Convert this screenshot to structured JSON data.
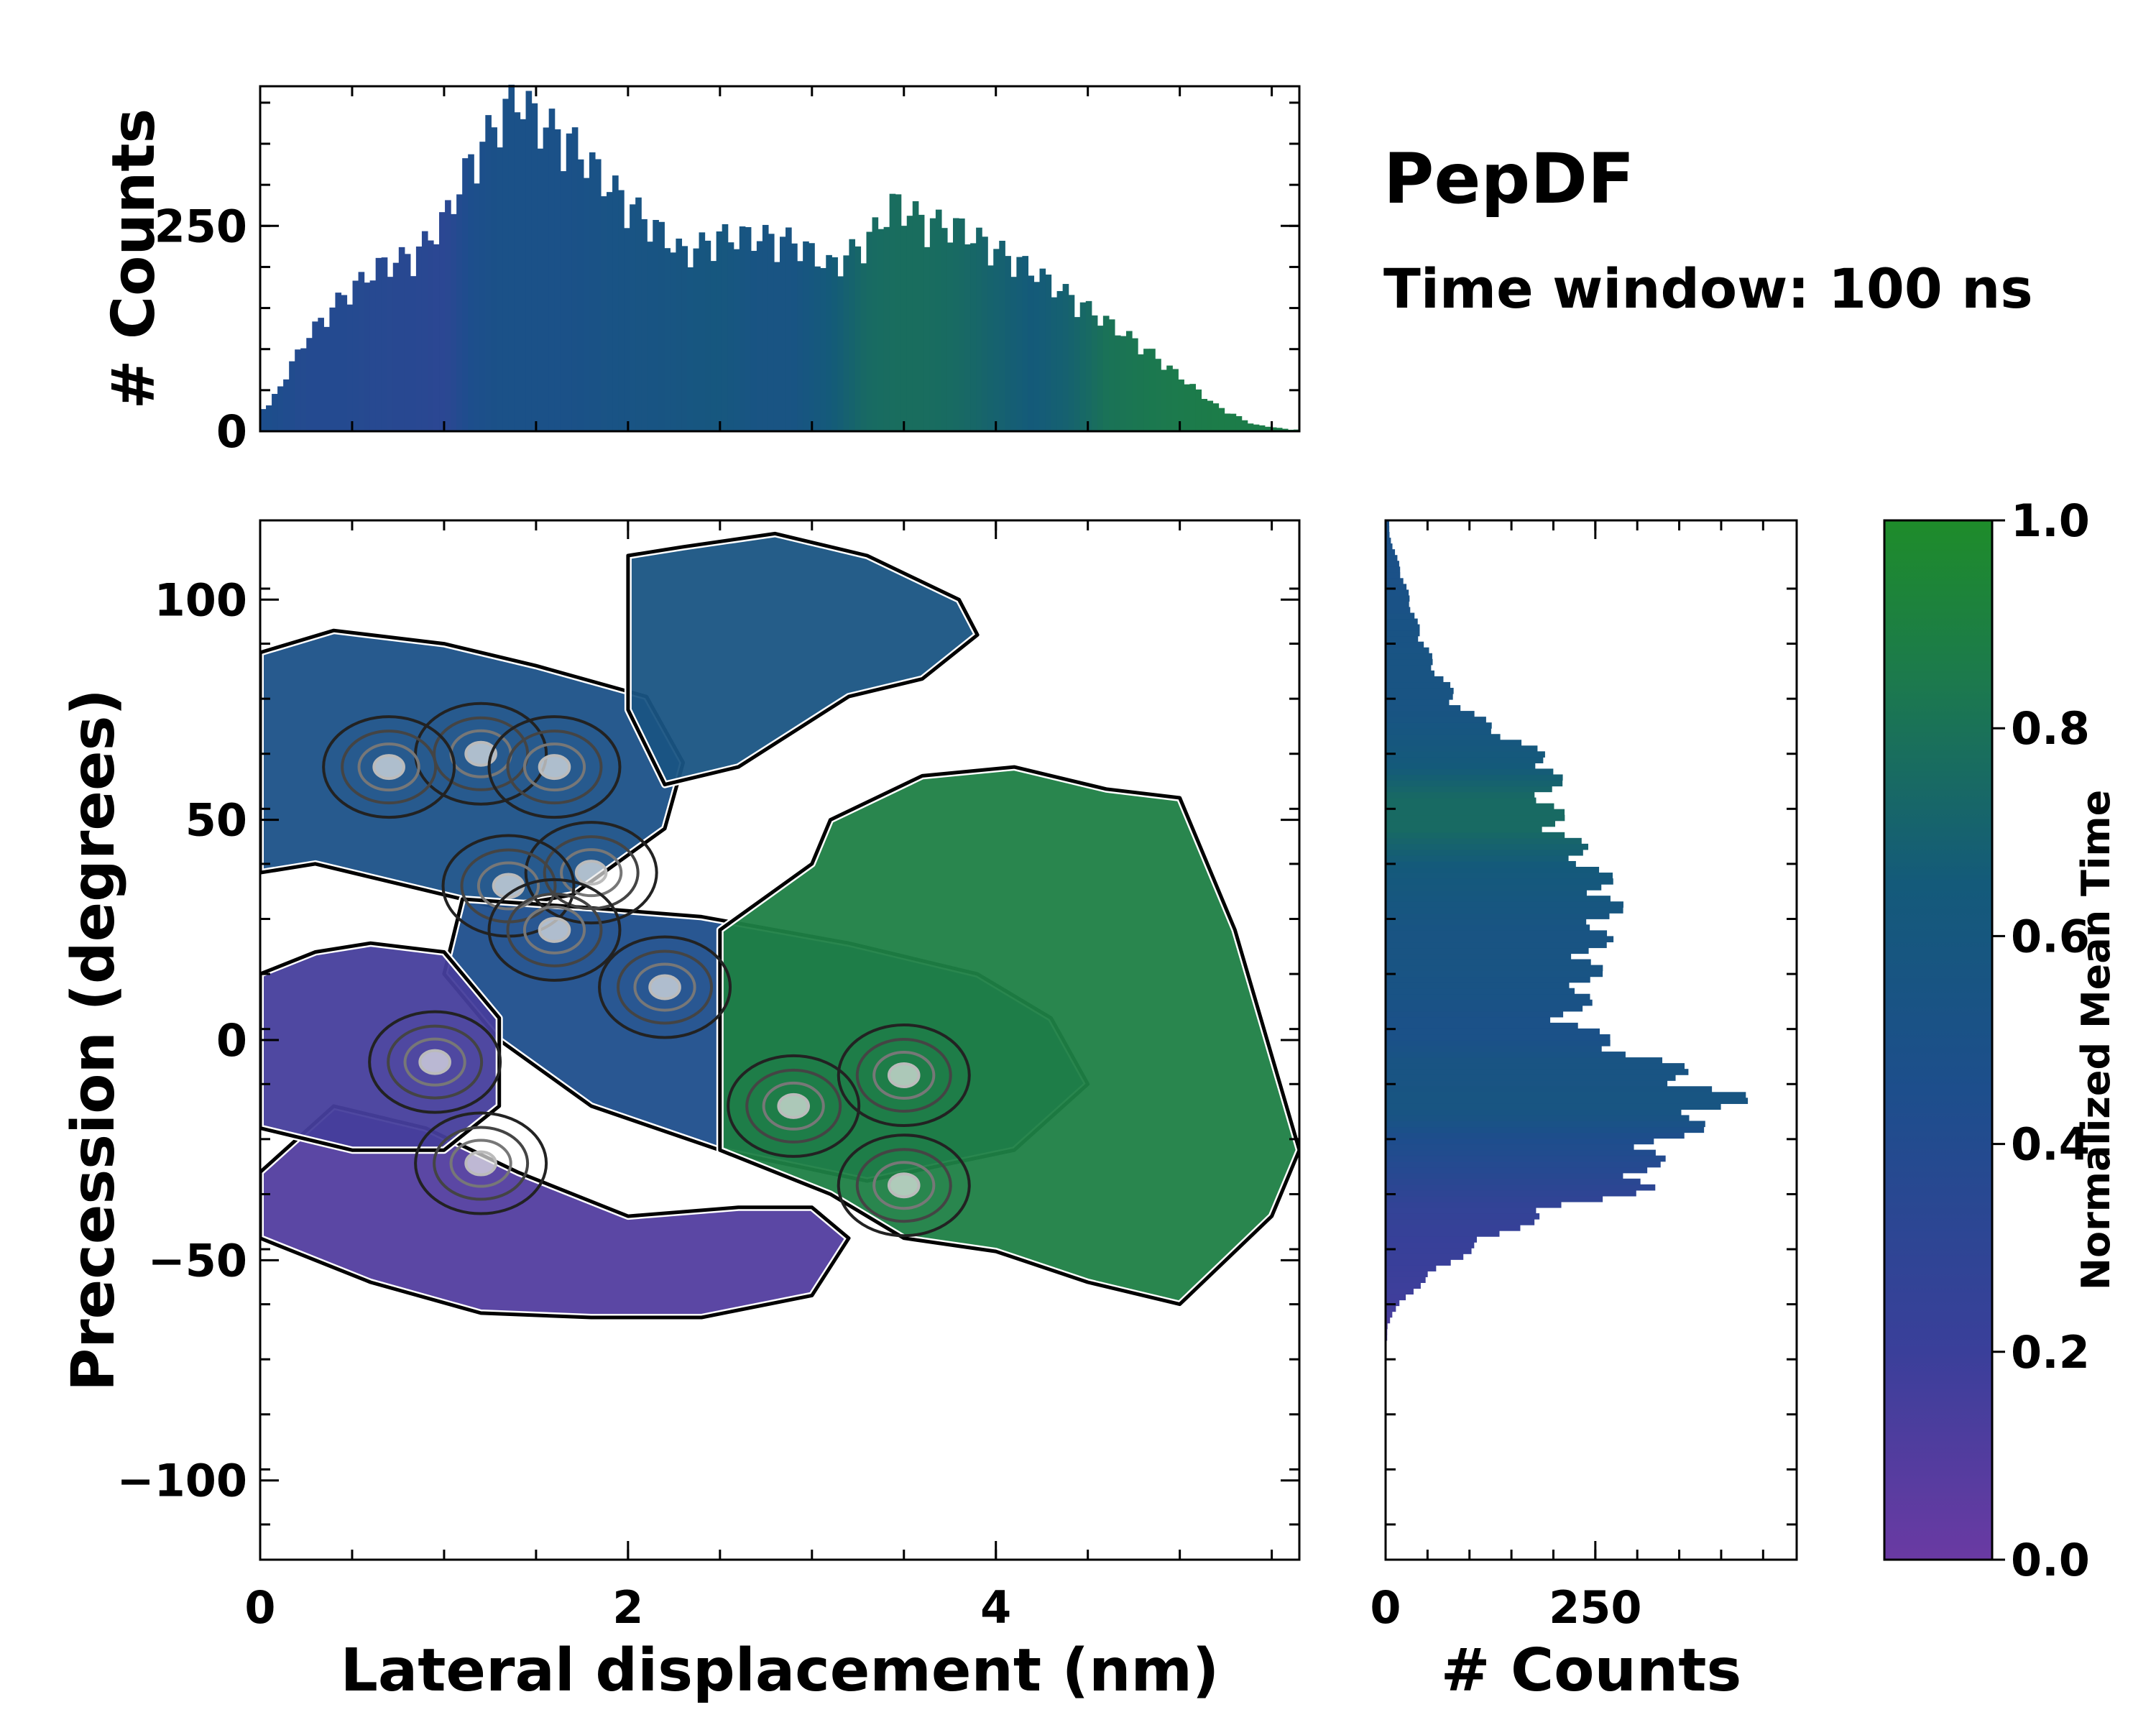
{
  "chart_data": {
    "type": "scatter",
    "title": "PepDF",
    "subtitle": "Time window: 100 ns",
    "main": {
      "xlabel": "Lateral displacement (nm)",
      "ylabel": "Precession (degrees)",
      "xlim": [
        0,
        5.65
      ],
      "ylim": [
        -118,
        118
      ],
      "xticks": [
        0,
        2,
        4
      ],
      "yticks": [
        -100,
        -50,
        0,
        50,
        100
      ],
      "regions": [
        {
          "name": "upper-left blue",
          "x": [
            0.0,
            0.4,
            1.0,
            1.5,
            2.1,
            2.3,
            2.2,
            1.7,
            1.3,
            0.8,
            0.3,
            0.0
          ],
          "y": [
            88,
            93,
            90,
            85,
            78,
            63,
            48,
            33,
            30,
            35,
            40,
            38
          ],
          "t": 0.45
        },
        {
          "name": "top blue",
          "x": [
            2.0,
            2.3,
            2.8,
            3.3,
            3.8,
            3.9,
            3.6,
            3.2,
            2.6,
            2.2,
            2.0
          ],
          "y": [
            110,
            112,
            115,
            110,
            100,
            92,
            82,
            78,
            62,
            58,
            75
          ],
          "t": 0.5
        },
        {
          "name": "middle blue",
          "x": [
            1.1,
            1.8,
            2.4,
            3.2,
            3.9,
            4.3,
            4.5,
            4.1,
            3.3,
            2.5,
            1.8,
            1.3,
            1.0
          ],
          "y": [
            32,
            30,
            28,
            22,
            15,
            5,
            -10,
            -25,
            -32,
            -25,
            -15,
            0,
            15
          ],
          "t": 0.4
        },
        {
          "name": "right green",
          "x": [
            3.1,
            3.6,
            4.1,
            4.6,
            5.0,
            5.3,
            5.65,
            5.5,
            5.0,
            4.5,
            4.0,
            3.5,
            3.1,
            2.5,
            2.5,
            3.0
          ],
          "y": [
            50,
            60,
            62,
            57,
            55,
            25,
            -25,
            -40,
            -60,
            -55,
            -48,
            -45,
            -35,
            -25,
            25,
            40
          ],
          "t": 0.85
        },
        {
          "name": "bottom purple",
          "x": [
            0.0,
            0.6,
            1.2,
            1.8,
            2.4,
            3.0,
            3.2,
            3.0,
            2.6,
            2.0,
            1.4,
            0.9,
            0.4,
            0.0
          ],
          "y": [
            -45,
            -55,
            -62,
            -63,
            -63,
            -58,
            -45,
            -38,
            -38,
            -40,
            -30,
            -20,
            -15,
            -30
          ],
          "t": 0.1
        },
        {
          "name": "left purple",
          "x": [
            0.0,
            0.3,
            0.6,
            1.0,
            1.3,
            1.3,
            1.0,
            0.5,
            0.0
          ],
          "y": [
            15,
            20,
            22,
            20,
            5,
            -15,
            -25,
            -25,
            -20
          ],
          "t": 0.15
        }
      ],
      "hotspots": [
        {
          "x": 1.2,
          "y": 65
        },
        {
          "x": 1.6,
          "y": 62
        },
        {
          "x": 1.8,
          "y": 38
        },
        {
          "x": 1.35,
          "y": 35
        },
        {
          "x": 1.6,
          "y": 25
        },
        {
          "x": 0.7,
          "y": 62
        },
        {
          "x": 2.2,
          "y": 12
        },
        {
          "x": 2.9,
          "y": -15
        },
        {
          "x": 3.5,
          "y": -8
        },
        {
          "x": 3.5,
          "y": -33
        },
        {
          "x": 1.2,
          "y": -28
        },
        {
          "x": 0.95,
          "y": -5
        }
      ]
    },
    "top_hist": {
      "ylabel": "# Counts",
      "ylim": [
        0,
        420
      ],
      "yticks": [
        0,
        250
      ],
      "x": [
        0.05,
        0.25,
        0.45,
        0.65,
        0.85,
        1.0,
        1.15,
        1.3,
        1.4,
        1.5,
        1.7,
        1.9,
        2.1,
        2.3,
        2.5,
        2.7,
        2.9,
        3.1,
        3.3,
        3.45,
        3.6,
        3.8,
        4.0,
        4.2,
        4.4,
        4.6,
        4.8,
        5.0,
        5.2,
        5.4,
        5.6
      ],
      "values": [
        30,
        110,
        160,
        195,
        210,
        250,
        320,
        370,
        395,
        370,
        340,
        290,
        250,
        210,
        230,
        230,
        225,
        195,
        225,
        270,
        250,
        240,
        215,
        190,
        160,
        130,
        100,
        65,
        30,
        8,
        2
      ],
      "t": [
        0.4,
        0.35,
        0.35,
        0.33,
        0.32,
        0.3,
        0.4,
        0.45,
        0.45,
        0.45,
        0.45,
        0.48,
        0.5,
        0.52,
        0.55,
        0.5,
        0.5,
        0.6,
        0.7,
        0.72,
        0.72,
        0.7,
        0.65,
        0.6,
        0.65,
        0.75,
        0.78,
        0.8,
        0.82,
        0.82,
        0.82
      ]
    },
    "right_hist": {
      "xlabel": "# Counts",
      "xlim": [
        0,
        490
      ],
      "xticks": [
        0,
        250
      ],
      "y": [
        115,
        105,
        95,
        85,
        75,
        68,
        62,
        55,
        48,
        40,
        33,
        25,
        18,
        10,
        5,
        0,
        -5,
        -10,
        -13,
        -17,
        -22,
        -28,
        -33,
        -38,
        -45,
        -52,
        -58,
        -62,
        -65
      ],
      "values": [
        4,
        20,
        35,
        55,
        90,
        150,
        200,
        185,
        205,
        235,
        265,
        250,
        240,
        230,
        210,
        250,
        315,
        365,
        400,
        375,
        330,
        300,
        310,
        200,
        120,
        60,
        25,
        8,
        2
      ],
      "t": [
        0.45,
        0.45,
        0.48,
        0.5,
        0.5,
        0.55,
        0.6,
        0.7,
        0.7,
        0.6,
        0.55,
        0.5,
        0.5,
        0.48,
        0.45,
        0.45,
        0.5,
        0.5,
        0.52,
        0.5,
        0.4,
        0.35,
        0.3,
        0.25,
        0.22,
        0.2,
        0.18,
        0.15,
        0.12
      ]
    },
    "colorbar": {
      "label": "Normalized Mean Time",
      "ticks": [
        "0.0",
        "0.2",
        "0.4",
        "0.6",
        "0.8",
        "1.0"
      ],
      "colors": [
        "#6a3aa3",
        "#3a3f9a",
        "#1d4e8c",
        "#145a7a",
        "#1c7a4c",
        "#1e8c2a"
      ]
    }
  }
}
